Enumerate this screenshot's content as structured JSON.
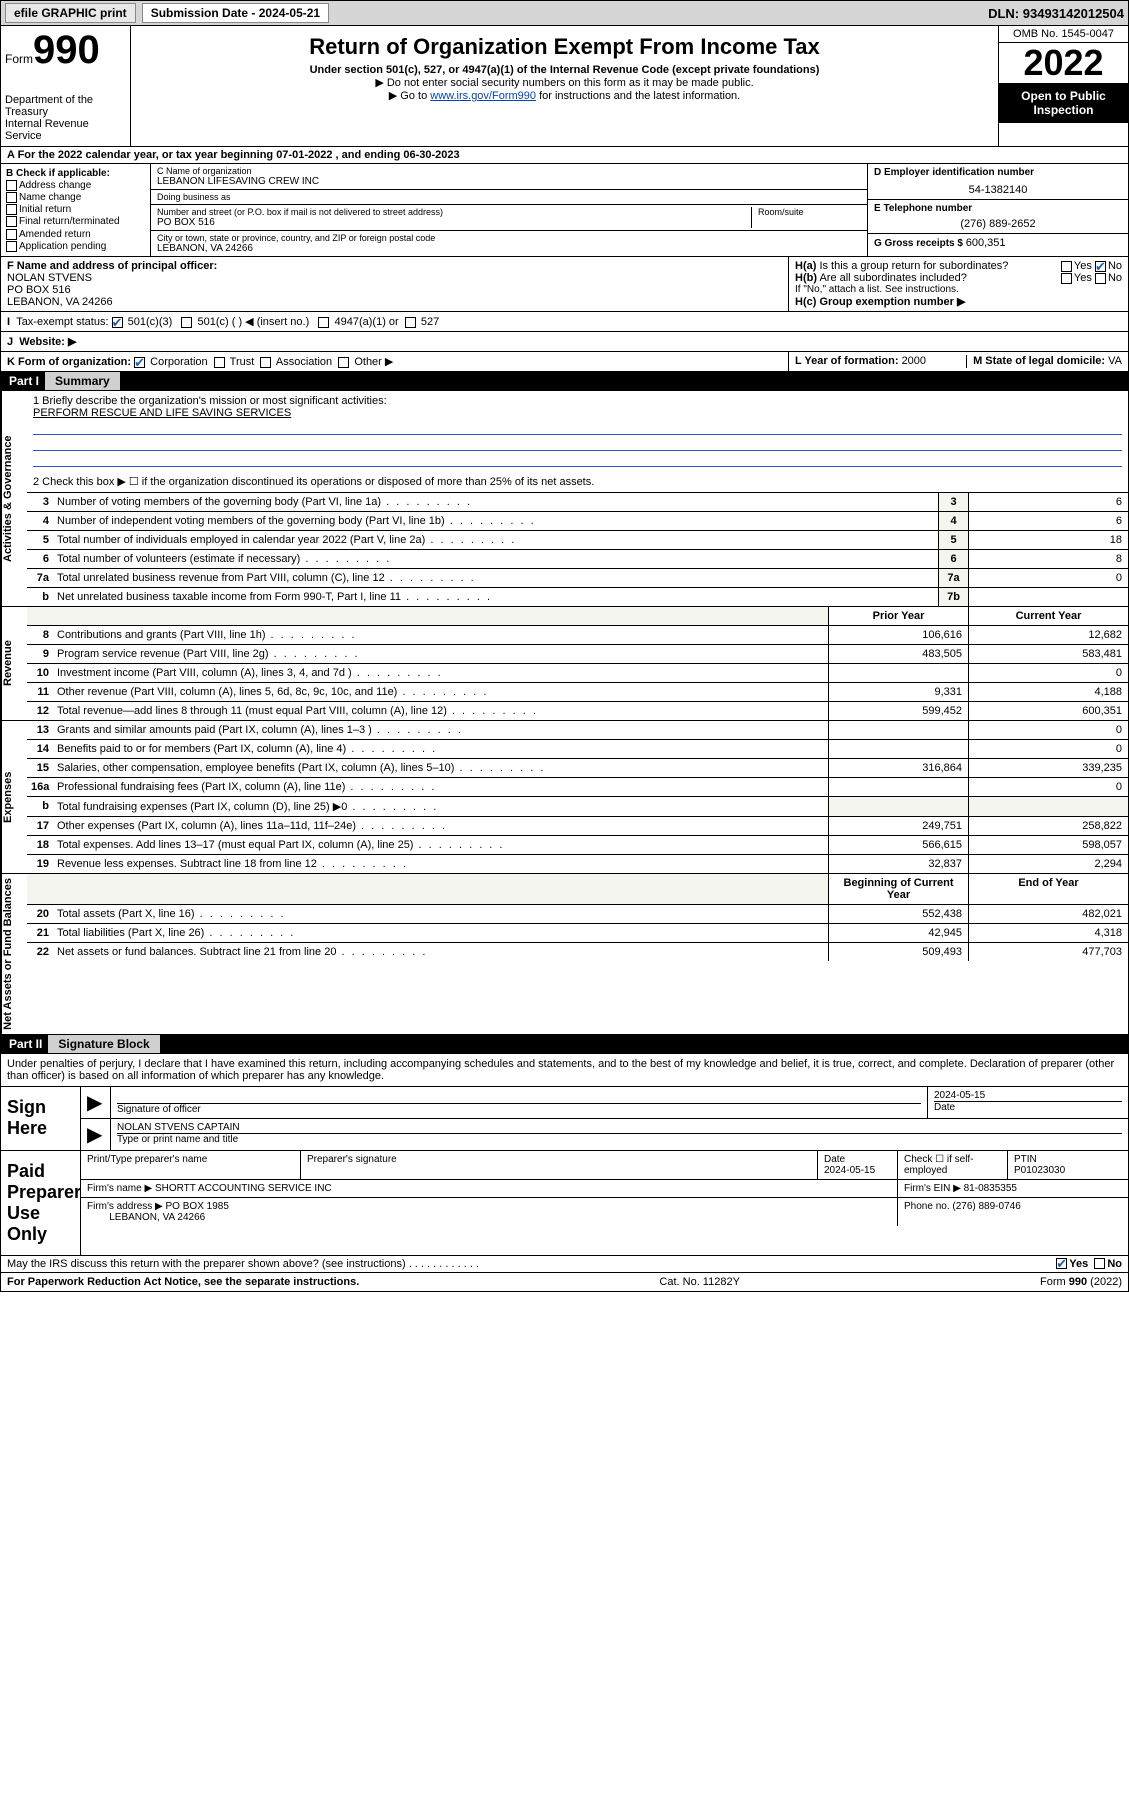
{
  "topbar": {
    "efile": "efile GRAPHIC print",
    "subdate_lbl": "Submission Date - ",
    "subdate": "2024-05-21",
    "dln_lbl": "DLN: ",
    "dln": "93493142012504"
  },
  "header": {
    "form_word": "Form",
    "form_no": "990",
    "dept": "Department of the Treasury",
    "irs": "Internal Revenue Service",
    "title": "Return of Organization Exempt From Income Tax",
    "sub": "Under section 501(c), 527, or 4947(a)(1) of the Internal Revenue Code (except private foundations)",
    "note1": "▶ Do not enter social security numbers on this form as it may be made public.",
    "note2_pre": "▶ Go to ",
    "note2_link": "www.irs.gov/Form990",
    "note2_post": " for instructions and the latest information.",
    "omb": "OMB No. 1545-0047",
    "year": "2022",
    "open": "Open to Public Inspection"
  },
  "rowA": "A For the 2022 calendar year, or tax year beginning 07-01-2022   , and ending 06-30-2023",
  "colB": {
    "hdr": "B Check if applicable:",
    "addr": "Address change",
    "name": "Name change",
    "init": "Initial return",
    "final": "Final return/terminated",
    "amend": "Amended return",
    "app": "Application pending"
  },
  "colC": {
    "c1_lbl": "C Name of organization",
    "c1": "LEBANON LIFESAVING CREW INC",
    "c2_lbl": "Doing business as",
    "c2": "",
    "c3_lbl": "Number and street (or P.O. box if mail is not delivered to street address)",
    "c3": "PO BOX 516",
    "c3r": "Room/suite",
    "c4_lbl": "City or town, state or province, country, and ZIP or foreign postal code",
    "c4": "LEBANON, VA  24266"
  },
  "colD": {
    "d_lbl": "D Employer identification number",
    "d": "54-1382140",
    "e_lbl": "E Telephone number",
    "e": "(276) 889-2652",
    "g_lbl": "G Gross receipts $ ",
    "g": "600,351"
  },
  "rowF": {
    "lbl": "F Name and address of principal officer:",
    "name": "NOLAN STVENS",
    "addr1": "PO BOX 516",
    "addr2": "LEBANON, VA  24266"
  },
  "rowH": {
    "ha": "H(a)  Is this a group return for subordinates?",
    "hb": "H(b)  Are all subordinates included?",
    "hb2": "If \"No,\" attach a list. See instructions.",
    "hc": "H(c)  Group exemption number ▶",
    "yes": "Yes",
    "no": "No"
  },
  "rowI": {
    "lbl": "Tax-exempt status:",
    "o1": "501(c)(3)",
    "o2": "501(c) (   ) ◀ (insert no.)",
    "o3": "4947(a)(1) or",
    "o4": "527"
  },
  "rowJ": {
    "lbl": "Website: ▶",
    "val": ""
  },
  "rowK": {
    "lbl": "K Form of organization:",
    "corp": "Corporation",
    "trust": "Trust",
    "assoc": "Association",
    "other": "Other ▶"
  },
  "rowL": {
    "lbl": "L Year of formation: ",
    "val": "2000"
  },
  "rowM": {
    "lbl": "M State of legal domicile: ",
    "val": "VA"
  },
  "part1": {
    "hdr": "Part I",
    "title": "Summary"
  },
  "mission": {
    "l1": "1  Briefly describe the organization's mission or most significant activities:",
    "txt": "PERFORM RESCUE AND LIFE SAVING SERVICES",
    "l2": "2  Check this box ▶ ☐  if the organization discontinued its operations or disposed of more than 25% of its net assets."
  },
  "gov_lines": [
    {
      "n": "3",
      "t": "Number of voting members of the governing body (Part VI, line 1a)",
      "b": "3",
      "v": "6"
    },
    {
      "n": "4",
      "t": "Number of independent voting members of the governing body (Part VI, line 1b)",
      "b": "4",
      "v": "6"
    },
    {
      "n": "5",
      "t": "Total number of individuals employed in calendar year 2022 (Part V, line 2a)",
      "b": "5",
      "v": "18"
    },
    {
      "n": "6",
      "t": "Total number of volunteers (estimate if necessary)",
      "b": "6",
      "v": "8"
    },
    {
      "n": "7a",
      "t": "Total unrelated business revenue from Part VIII, column (C), line 12",
      "b": "7a",
      "v": "0"
    },
    {
      "n": "b",
      "t": "Net unrelated business taxable income from Form 990-T, Part I, line 11",
      "b": "7b",
      "v": ""
    }
  ],
  "rev_hdr": {
    "c1": "Prior Year",
    "c2": "Current Year"
  },
  "rev_lines": [
    {
      "n": "8",
      "t": "Contributions and grants (Part VIII, line 1h)",
      "p": "106,616",
      "c": "12,682"
    },
    {
      "n": "9",
      "t": "Program service revenue (Part VIII, line 2g)",
      "p": "483,505",
      "c": "583,481"
    },
    {
      "n": "10",
      "t": "Investment income (Part VIII, column (A), lines 3, 4, and 7d )",
      "p": "",
      "c": "0"
    },
    {
      "n": "11",
      "t": "Other revenue (Part VIII, column (A), lines 5, 6d, 8c, 9c, 10c, and 11e)",
      "p": "9,331",
      "c": "4,188"
    },
    {
      "n": "12",
      "t": "Total revenue—add lines 8 through 11 (must equal Part VIII, column (A), line 12)",
      "p": "599,452",
      "c": "600,351"
    }
  ],
  "exp_lines": [
    {
      "n": "13",
      "t": "Grants and similar amounts paid (Part IX, column (A), lines 1–3 )",
      "p": "",
      "c": "0"
    },
    {
      "n": "14",
      "t": "Benefits paid to or for members (Part IX, column (A), line 4)",
      "p": "",
      "c": "0"
    },
    {
      "n": "15",
      "t": "Salaries, other compensation, employee benefits (Part IX, column (A), lines 5–10)",
      "p": "316,864",
      "c": "339,235"
    },
    {
      "n": "16a",
      "t": "Professional fundraising fees (Part IX, column (A), line 11e)",
      "p": "",
      "c": "0"
    },
    {
      "n": "b",
      "t": "Total fundraising expenses (Part IX, column (D), line 25) ▶0",
      "p": "—shade—",
      "c": "—shade—"
    },
    {
      "n": "17",
      "t": "Other expenses (Part IX, column (A), lines 11a–11d, 11f–24e)",
      "p": "249,751",
      "c": "258,822"
    },
    {
      "n": "18",
      "t": "Total expenses. Add lines 13–17 (must equal Part IX, column (A), line 25)",
      "p": "566,615",
      "c": "598,057"
    },
    {
      "n": "19",
      "t": "Revenue less expenses. Subtract line 18 from line 12",
      "p": "32,837",
      "c": "2,294"
    }
  ],
  "na_hdr": {
    "c1": "Beginning of Current Year",
    "c2": "End of Year"
  },
  "na_lines": [
    {
      "n": "20",
      "t": "Total assets (Part X, line 16)",
      "p": "552,438",
      "c": "482,021"
    },
    {
      "n": "21",
      "t": "Total liabilities (Part X, line 26)",
      "p": "42,945",
      "c": "4,318"
    },
    {
      "n": "22",
      "t": "Net assets or fund balances. Subtract line 21 from line 20",
      "p": "509,493",
      "c": "477,703"
    }
  ],
  "part2": {
    "hdr": "Part II",
    "title": "Signature Block"
  },
  "penalty": "Under penalties of perjury, I declare that I have examined this return, including accompanying schedules and statements, and to the best of my knowledge and belief, it is true, correct, and complete. Declaration of preparer (other than officer) is based on all information of which preparer has any knowledge.",
  "sign": {
    "lbl": "Sign Here",
    "sig_lbl": "Signature of officer",
    "date_lbl": "Date",
    "date": "2024-05-15",
    "name_lbl": "Type or print name and title",
    "name": "NOLAN STVENS CAPTAIN"
  },
  "prep": {
    "lbl": "Paid Preparer Use Only",
    "h1": "Print/Type preparer's name",
    "h2": "Preparer's signature",
    "h3": "Date",
    "h3v": "2024-05-15",
    "h4": "Check ☐ if self-employed",
    "h5": "PTIN",
    "h5v": "P01023030",
    "firm_lbl": "Firm's name    ▶ ",
    "firm": "SHORTT ACCOUNTING SERVICE INC",
    "ein_lbl": "Firm's EIN ▶ ",
    "ein": "81-0835355",
    "addr_lbl": "Firm's address ▶ ",
    "addr1": "PO BOX 1985",
    "addr2": "LEBANON, VA  24266",
    "ph_lbl": "Phone no. ",
    "ph": "(276) 889-0746"
  },
  "discuss": "May the IRS discuss this return with the preparer shown above? (see instructions)",
  "footer": {
    "l": "For Paperwork Reduction Act Notice, see the separate instructions.",
    "c": "Cat. No. 11282Y",
    "r": "Form 990 (2022)"
  },
  "vtabs": {
    "gov": "Activities & Governance",
    "rev": "Revenue",
    "exp": "Expenses",
    "na": "Net Assets or Fund Balances"
  }
}
